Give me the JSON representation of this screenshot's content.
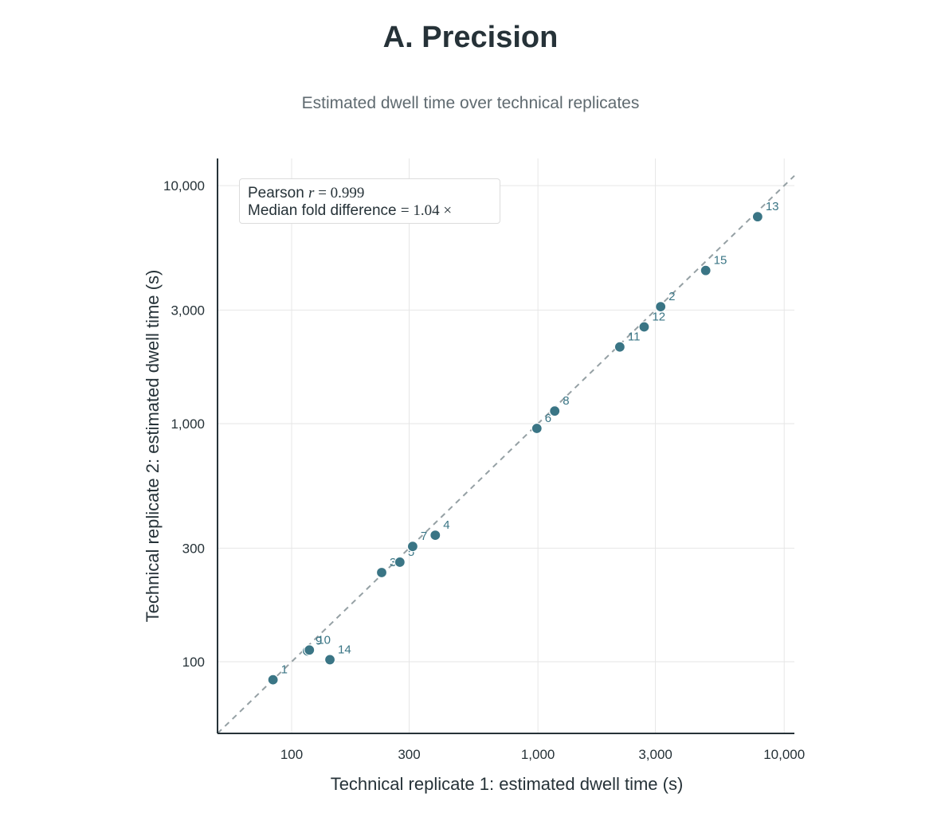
{
  "chart_data": {
    "type": "scatter",
    "title": "A. Precision",
    "subtitle": "Estimated dwell time over technical replicates",
    "xlabel": "Technical replicate 1: estimated dwell time (s)",
    "ylabel": "Technical replicate 2: estimated dwell time (s)",
    "xscale": "log",
    "yscale": "log",
    "xlim": [
      50,
      11000
    ],
    "ylim": [
      50,
      13000
    ],
    "xticks": [
      100,
      300,
      1000,
      3000,
      10000
    ],
    "xtick_labels": [
      "100",
      "300",
      "1,000",
      "3,000",
      "10,000"
    ],
    "yticks": [
      100,
      300,
      1000,
      3000,
      10000
    ],
    "ytick_labels": [
      "100",
      "300",
      "1,000",
      "3,000",
      "10,000"
    ],
    "grid": true,
    "reference_line": "y = x",
    "legend": {
      "placement": "top-left",
      "line1_prefix": "Pearson ",
      "line1_var": "r",
      "line1_eq": " = ",
      "line1_value": "0.999",
      "line2_prefix": "Median fold difference ",
      "line2_eq": "= ",
      "line2_value": "1.04",
      "line2_suffix": " ×"
    },
    "point_color": "#3a7585",
    "points": [
      {
        "label": "1",
        "x": 84,
        "y": 84
      },
      {
        "label": "2",
        "x": 3150,
        "y": 3100
      },
      {
        "label": "3",
        "x": 232,
        "y": 237
      },
      {
        "label": "4",
        "x": 383,
        "y": 340
      },
      {
        "label": "5",
        "x": 275,
        "y": 262
      },
      {
        "label": "6",
        "x": 990,
        "y": 955
      },
      {
        "label": "7",
        "x": 310,
        "y": 305
      },
      {
        "label": "8",
        "x": 1170,
        "y": 1130
      },
      {
        "label": "9",
        "x": 116,
        "y": 111
      },
      {
        "label": "10",
        "x": 118,
        "y": 112
      },
      {
        "label": "11",
        "x": 2150,
        "y": 2100
      },
      {
        "label": "12",
        "x": 2700,
        "y": 2550
      },
      {
        "label": "13",
        "x": 7800,
        "y": 7400
      },
      {
        "label": "14",
        "x": 143,
        "y": 102
      },
      {
        "label": "15",
        "x": 4800,
        "y": 4400
      }
    ]
  }
}
